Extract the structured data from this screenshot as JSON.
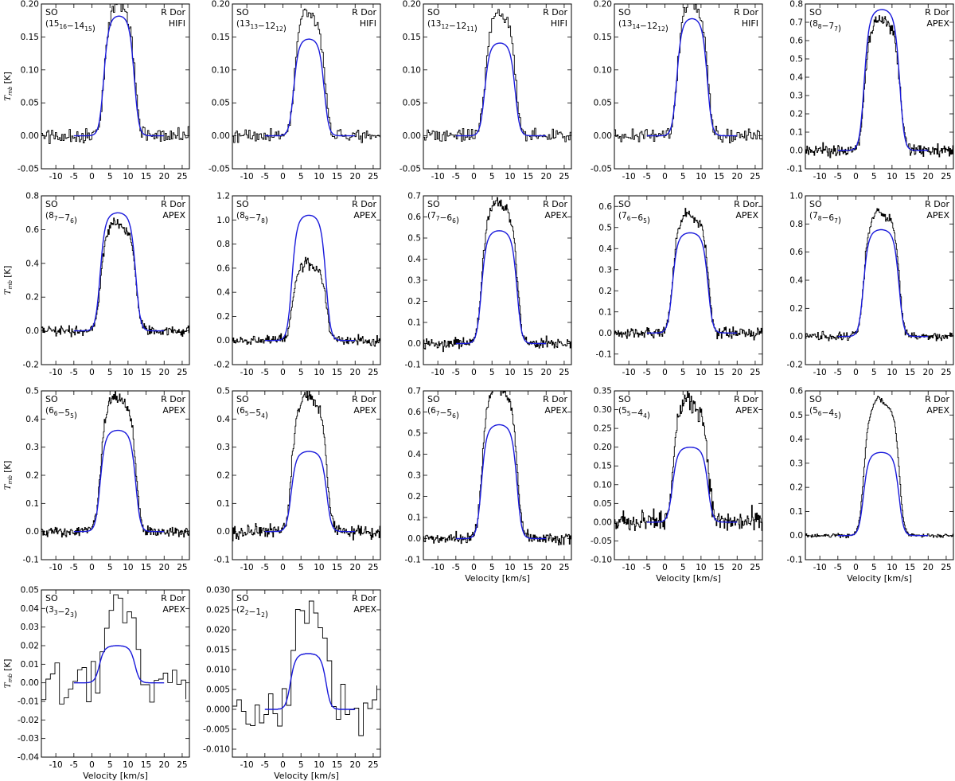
{
  "figure": {
    "xlabel": "Velocity [km/s]",
    "ylabel_main": "T",
    "ylabel_sub": "mb",
    "ylabel_unit": " [K]"
  },
  "colors": {
    "observed": "#000000",
    "model": "#1a1adb",
    "frame": "#000000"
  },
  "chart_data": [
    {
      "type": "line",
      "species": "SO",
      "trans": [
        "15",
        "16",
        "14",
        "15"
      ],
      "source": "R Dor",
      "instrument": "HIFI",
      "xlim": [
        -14,
        27
      ],
      "ylim": [
        -0.05,
        0.2
      ],
      "xticks": [
        -10,
        -5,
        0,
        5,
        10,
        15,
        20,
        25
      ],
      "yticks": [
        "-0.05",
        "0.00",
        "0.05",
        "0.10",
        "0.15",
        "0.20"
      ],
      "peak": 0.193,
      "model_peak": 0.182,
      "model_center": 7.5,
      "model_halfwidth": 4.3,
      "model_range": [
        -5,
        20
      ],
      "noise": 0.012,
      "series": [
        {
          "name": "",
          "x": [],
          "y": []
        },
        {
          "name": "",
          "x": [],
          "y": []
        }
      ]
    },
    {
      "type": "line",
      "species": "SO",
      "trans": [
        "13",
        "13",
        "12",
        "12"
      ],
      "source": "R Dor",
      "instrument": "HIFI",
      "xlim": [
        -14,
        27
      ],
      "ylim": [
        -0.05,
        0.2
      ],
      "xticks": [
        -10,
        -5,
        0,
        5,
        10,
        15,
        20,
        25
      ],
      "yticks": [
        "-0.05",
        "0.00",
        "0.05",
        "0.10",
        "0.15",
        "0.20"
      ],
      "peak": 0.18,
      "model_peak": 0.147,
      "model_center": 7.2,
      "model_halfwidth": 4.3,
      "model_range": [
        -5,
        20
      ],
      "noise": 0.01,
      "series": [
        {
          "name": "",
          "x": [],
          "y": []
        },
        {
          "name": "",
          "x": [],
          "y": []
        }
      ]
    },
    {
      "type": "line",
      "species": "SO",
      "trans": [
        "13",
        "12",
        "12",
        "11"
      ],
      "source": "R Dor",
      "instrument": "HIFI",
      "xlim": [
        -14,
        27
      ],
      "ylim": [
        -0.05,
        0.2
      ],
      "xticks": [
        -10,
        -5,
        0,
        5,
        10,
        15,
        20,
        25
      ],
      "yticks": [
        "-0.05",
        "0.00",
        "0.05",
        "0.10",
        "0.15",
        "0.20"
      ],
      "peak": 0.178,
      "model_peak": 0.141,
      "model_center": 7.2,
      "model_halfwidth": 4.3,
      "model_range": [
        -5,
        20
      ],
      "noise": 0.01,
      "series": [
        {
          "name": "",
          "x": [],
          "y": []
        },
        {
          "name": "",
          "x": [],
          "y": []
        }
      ]
    },
    {
      "type": "line",
      "species": "SO",
      "trans": [
        "13",
        "14",
        "12",
        "12"
      ],
      "source": "R Dor",
      "instrument": "HIFI",
      "xlim": [
        -14,
        27
      ],
      "ylim": [
        -0.05,
        0.2
      ],
      "xticks": [
        -10,
        -5,
        0,
        5,
        10,
        15,
        20,
        25
      ],
      "yticks": [
        "-0.05",
        "0.00",
        "0.05",
        "0.10",
        "0.15",
        "0.20"
      ],
      "peak": 0.197,
      "model_peak": 0.178,
      "model_center": 7.5,
      "model_halfwidth": 4.3,
      "model_range": [
        -5,
        20
      ],
      "noise": 0.01,
      "series": [
        {
          "name": "",
          "x": [],
          "y": []
        },
        {
          "name": "",
          "x": [],
          "y": []
        }
      ]
    },
    {
      "type": "line",
      "species": "SO",
      "trans": [
        "8",
        "8",
        "7",
        "7"
      ],
      "source": "R Dor",
      "instrument": "APEX",
      "xlim": [
        -14,
        27
      ],
      "ylim": [
        -0.1,
        0.8
      ],
      "xticks": [
        -10,
        -5,
        0,
        5,
        10,
        15,
        20,
        25
      ],
      "yticks": [
        "-0.1",
        "0.0",
        "0.1",
        "0.2",
        "0.3",
        "0.4",
        "0.5",
        "0.6",
        "0.7",
        "0.8"
      ],
      "peak": 0.69,
      "model_peak": 0.77,
      "model_center": 7.2,
      "model_halfwidth": 5.0,
      "model_range": [
        -5,
        20
      ],
      "noise": 0.035,
      "series": [
        {
          "name": "",
          "x": [],
          "y": []
        },
        {
          "name": "",
          "x": [],
          "y": []
        }
      ]
    },
    {
      "type": "line",
      "species": "SO",
      "trans": [
        "8",
        "7",
        "7",
        "6"
      ],
      "source": "R Dor",
      "instrument": "APEX",
      "xlim": [
        -14,
        27
      ],
      "ylim": [
        -0.2,
        0.8
      ],
      "xticks": [
        -10,
        -5,
        0,
        5,
        10,
        15,
        20,
        25
      ],
      "yticks": [
        "-0.2",
        "0.0",
        "0.2",
        "0.4",
        "0.6",
        "0.8"
      ],
      "peak": 0.61,
      "model_peak": 0.7,
      "model_center": 7.2,
      "model_halfwidth": 5.0,
      "model_range": [
        -5,
        20
      ],
      "noise": 0.03,
      "series": [
        {
          "name": "",
          "x": [],
          "y": []
        },
        {
          "name": "",
          "x": [],
          "y": []
        }
      ]
    },
    {
      "type": "line",
      "species": "SO",
      "trans": [
        "8",
        "9",
        "7",
        "8"
      ],
      "source": "R Dor",
      "instrument": "APEX",
      "xlim": [
        -14,
        27
      ],
      "ylim": [
        -0.2,
        1.2
      ],
      "xticks": [
        -10,
        -5,
        0,
        5,
        10,
        15,
        20,
        25
      ],
      "yticks": [
        "-0.2",
        "0.0",
        "0.2",
        "0.4",
        "0.6",
        "0.8",
        "1.0",
        "1.2"
      ],
      "peak": 0.61,
      "model_peak": 1.04,
      "model_center": 7.2,
      "model_halfwidth": 4.8,
      "model_range": [
        -5,
        20
      ],
      "noise": 0.04,
      "series": [
        {
          "name": "",
          "x": [],
          "y": []
        },
        {
          "name": "",
          "x": [],
          "y": []
        }
      ]
    },
    {
      "type": "line",
      "species": "SO",
      "trans": [
        "7",
        "7",
        "6",
        "6"
      ],
      "source": "R Dor",
      "instrument": "APEX",
      "xlim": [
        -14,
        27
      ],
      "ylim": [
        -0.1,
        0.7
      ],
      "xticks": [
        -10,
        -5,
        0,
        5,
        10,
        15,
        20,
        25
      ],
      "yticks": [
        "-0.1",
        "0.0",
        "0.1",
        "0.2",
        "0.3",
        "0.4",
        "0.5",
        "0.6",
        "0.7"
      ],
      "peak": 0.64,
      "model_peak": 0.535,
      "model_center": 7.0,
      "model_halfwidth": 5.0,
      "model_range": [
        -5,
        20
      ],
      "noise": 0.025,
      "series": [
        {
          "name": "",
          "x": [],
          "y": []
        },
        {
          "name": "",
          "x": [],
          "y": []
        }
      ]
    },
    {
      "type": "line",
      "species": "SO",
      "trans": [
        "7",
        "6",
        "6",
        "5"
      ],
      "source": "R Dor",
      "instrument": "APEX",
      "xlim": [
        -14,
        27
      ],
      "ylim": [
        -0.15,
        0.65
      ],
      "xticks": [
        -10,
        -5,
        0,
        5,
        10,
        15,
        20,
        25
      ],
      "yticks": [
        "-0.1",
        "0.0",
        "0.1",
        "0.2",
        "0.3",
        "0.4",
        "0.5",
        "0.6"
      ],
      "peak": 0.54,
      "model_peak": 0.475,
      "model_center": 7.0,
      "model_halfwidth": 5.0,
      "model_range": [
        -5,
        20
      ],
      "noise": 0.025,
      "series": [
        {
          "name": "",
          "x": [],
          "y": []
        },
        {
          "name": "",
          "x": [],
          "y": []
        }
      ]
    },
    {
      "type": "line",
      "species": "SO",
      "trans": [
        "7",
        "8",
        "6",
        "7"
      ],
      "source": "R Dor",
      "instrument": "APEX",
      "xlim": [
        -14,
        27
      ],
      "ylim": [
        -0.2,
        1.0
      ],
      "xticks": [
        -10,
        -5,
        0,
        5,
        10,
        15,
        20,
        25
      ],
      "yticks": [
        "-0.2",
        "0.0",
        "0.2",
        "0.4",
        "0.6",
        "0.8",
        "1.0"
      ],
      "peak": 0.85,
      "model_peak": 0.76,
      "model_center": 7.0,
      "model_halfwidth": 5.0,
      "model_range": [
        -5,
        20
      ],
      "noise": 0.03,
      "series": [
        {
          "name": "",
          "x": [],
          "y": []
        },
        {
          "name": "",
          "x": [],
          "y": []
        }
      ]
    },
    {
      "type": "line",
      "species": "SO",
      "trans": [
        "6",
        "6",
        "5",
        "5"
      ],
      "source": "R Dor",
      "instrument": "APEX",
      "xlim": [
        -14,
        27
      ],
      "ylim": [
        -0.1,
        0.5
      ],
      "xticks": [
        -10,
        -5,
        0,
        5,
        10,
        15,
        20,
        25
      ],
      "yticks": [
        "-0.1",
        "0.0",
        "0.1",
        "0.2",
        "0.3",
        "0.4",
        "0.5"
      ],
      "peak": 0.46,
      "model_peak": 0.36,
      "model_center": 7.2,
      "model_halfwidth": 5.0,
      "model_range": [
        -5,
        20
      ],
      "noise": 0.018,
      "series": [
        {
          "name": "",
          "x": [],
          "y": []
        },
        {
          "name": "",
          "x": [],
          "y": []
        }
      ]
    },
    {
      "type": "line",
      "species": "SO",
      "trans": [
        "6",
        "5",
        "5",
        "4"
      ],
      "source": "R Dor",
      "instrument": "APEX",
      "xlim": [
        -14,
        27
      ],
      "ylim": [
        -0.1,
        0.5
      ],
      "xticks": [
        -10,
        -5,
        0,
        5,
        10,
        15,
        20,
        25
      ],
      "yticks": [
        "-0.1",
        "0.0",
        "0.1",
        "0.2",
        "0.3",
        "0.4",
        "0.5"
      ],
      "peak": 0.46,
      "model_peak": 0.285,
      "model_center": 7.2,
      "model_halfwidth": 5.0,
      "model_range": [
        -5,
        20
      ],
      "noise": 0.025,
      "series": [
        {
          "name": "",
          "x": [],
          "y": []
        },
        {
          "name": "",
          "x": [],
          "y": []
        }
      ]
    },
    {
      "type": "line",
      "species": "SO",
      "trans": [
        "6",
        "7",
        "5",
        "6"
      ],
      "source": "R Dor",
      "instrument": "APEX",
      "xlim": [
        -14,
        27
      ],
      "ylim": [
        -0.1,
        0.7
      ],
      "xticks": [
        -10,
        -5,
        0,
        5,
        10,
        15,
        20,
        25
      ],
      "yticks": [
        "-0.1",
        "0.0",
        "0.1",
        "0.2",
        "0.3",
        "0.4",
        "0.5",
        "0.6",
        "0.7"
      ],
      "peak": 0.69,
      "model_peak": 0.54,
      "model_center": 7.0,
      "model_halfwidth": 5.0,
      "model_range": [
        -5,
        20
      ],
      "noise": 0.025,
      "series": [
        {
          "name": "",
          "x": [],
          "y": []
        },
        {
          "name": "",
          "x": [],
          "y": []
        }
      ]
    },
    {
      "type": "line",
      "species": "SO",
      "trans": [
        "5",
        "5",
        "4",
        "4"
      ],
      "source": "R Dor",
      "instrument": "APEX",
      "xlim": [
        -14,
        27
      ],
      "ylim": [
        -0.1,
        0.35
      ],
      "xticks": [
        -10,
        -5,
        0,
        5,
        10,
        15,
        20,
        25
      ],
      "yticks": [
        "-0.10",
        "-0.05",
        "0.00",
        "0.05",
        "0.10",
        "0.15",
        "0.20",
        "0.25",
        "0.30",
        "0.35"
      ],
      "peak": 0.31,
      "model_peak": 0.2,
      "model_center": 7.0,
      "model_halfwidth": 5.0,
      "model_range": [
        -5,
        20
      ],
      "noise": 0.03,
      "series": [
        {
          "name": "",
          "x": [],
          "y": []
        },
        {
          "name": "",
          "x": [],
          "y": []
        }
      ]
    },
    {
      "type": "line",
      "species": "SO",
      "trans": [
        "5",
        "6",
        "4",
        "5"
      ],
      "source": "R Dor",
      "instrument": "APEX",
      "xlim": [
        -14,
        27
      ],
      "ylim": [
        -0.1,
        0.6
      ],
      "xticks": [
        -10,
        -5,
        0,
        5,
        10,
        15,
        20,
        25
      ],
      "yticks": [
        "-0.1",
        "0.0",
        "0.1",
        "0.2",
        "0.3",
        "0.4",
        "0.5",
        "0.6"
      ],
      "peak": 0.54,
      "model_peak": 0.345,
      "model_center": 7.0,
      "model_halfwidth": 5.0,
      "model_range": [
        -5,
        20
      ],
      "noise": 0.008,
      "series": [
        {
          "name": "",
          "x": [],
          "y": []
        },
        {
          "name": "",
          "x": [],
          "y": []
        }
      ]
    },
    {
      "type": "line",
      "species": "SO",
      "trans": [
        "3",
        "3",
        "2",
        "3"
      ],
      "source": "R Dor",
      "instrument": "APEX",
      "xlim": [
        -14,
        27
      ],
      "ylim": [
        -0.04,
        0.05
      ],
      "xticks": [
        -10,
        -5,
        0,
        5,
        10,
        15,
        20,
        25
      ],
      "yticks": [
        "-0.04",
        "-0.03",
        "-0.02",
        "-0.01",
        "0.00",
        "0.01",
        "0.02",
        "0.03",
        "0.04",
        "0.05"
      ],
      "peak": 0.046,
      "model_peak": 0.02,
      "model_center": 7.0,
      "model_halfwidth": 5.0,
      "model_range": [
        -5,
        20
      ],
      "noise": 0.012,
      "series": [
        {
          "name": "",
          "x": [],
          "y": []
        },
        {
          "name": "",
          "x": [],
          "y": []
        }
      ]
    },
    {
      "type": "line",
      "species": "SO",
      "trans": [
        "2",
        "2",
        "1",
        "2"
      ],
      "source": "R Dor",
      "instrument": "APEX",
      "xlim": [
        -14,
        27
      ],
      "ylim": [
        -0.012,
        0.03
      ],
      "xticks": [
        -10,
        -5,
        0,
        5,
        10,
        15,
        20,
        25
      ],
      "yticks": [
        "-0.010",
        "-0.005",
        "0.000",
        "0.005",
        "0.010",
        "0.015",
        "0.020",
        "0.025",
        "0.030"
      ],
      "peak": 0.024,
      "model_peak": 0.014,
      "model_center": 7.0,
      "model_halfwidth": 5.0,
      "model_range": [
        -5,
        20
      ],
      "noise": 0.006,
      "series": [
        {
          "name": "",
          "x": [],
          "y": []
        },
        {
          "name": "",
          "x": [],
          "y": []
        }
      ]
    }
  ]
}
